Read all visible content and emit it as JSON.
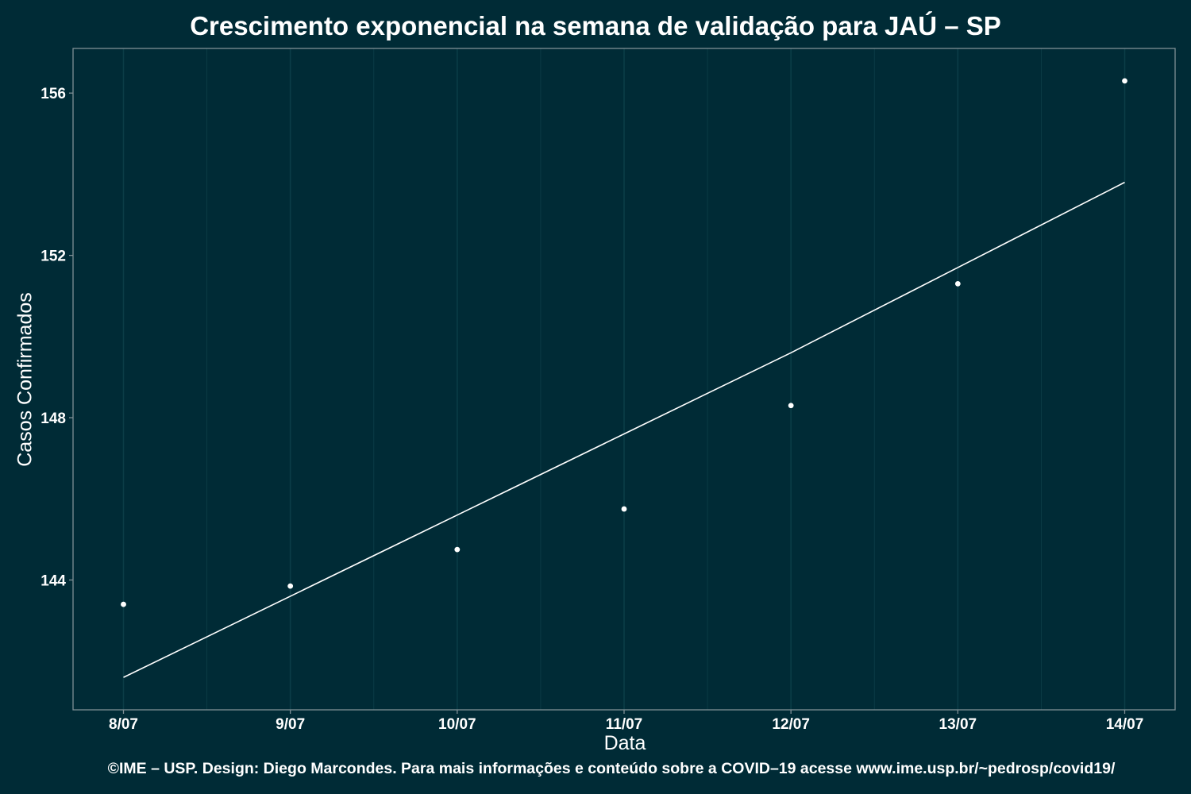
{
  "chart_data": {
    "type": "scatter",
    "title": "Crescimento exponencial na semana de validação para JAÚ – SP",
    "xlabel": "Data",
    "ylabel": "Casos Confirmados",
    "categories": [
      "8/07",
      "9/07",
      "10/07",
      "11/07",
      "12/07",
      "13/07",
      "14/07"
    ],
    "y_ticks": [
      144,
      148,
      152,
      156
    ],
    "ylim": [
      140.8,
      157.1
    ],
    "series": [
      {
        "type": "scatter",
        "values": [
          143.4,
          143.85,
          144.75,
          145.75,
          148.3,
          151.3,
          156.3
        ]
      },
      {
        "type": "line",
        "values": [
          141.6,
          143.6,
          145.6,
          147.6,
          149.6,
          151.7,
          153.8
        ]
      }
    ],
    "grid": true,
    "legend": "none",
    "colors": {
      "background": "#002b36",
      "points": "#ffffff",
      "fit_line": "#ffffff",
      "grid": "#0b3d47",
      "axis": "#7f8f95"
    }
  },
  "footer": {
    "credits": "©IME – USP. Design: Diego Marcondes. Para mais informações e conteúdo sobre a COVID–19 acesse www.ime.usp.br/~pedrosp/covid19/"
  }
}
